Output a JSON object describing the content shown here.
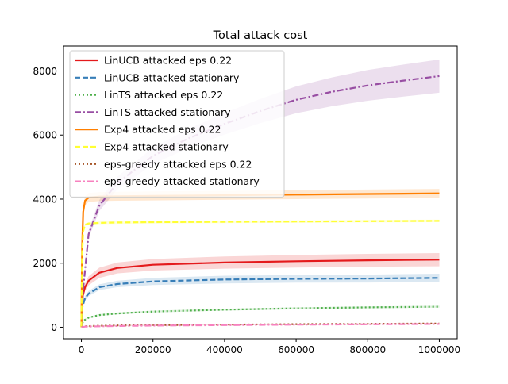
{
  "chart_data": {
    "type": "line",
    "title": "Total attack cost",
    "xlabel": "",
    "ylabel": "",
    "xlim": [
      -50000,
      1050000
    ],
    "ylim": [
      -360,
      8780
    ],
    "xticks": [
      0,
      200000,
      400000,
      600000,
      800000,
      1000000
    ],
    "xtick_labels": [
      "0",
      "200000",
      "400000",
      "600000",
      "800000",
      "1000000"
    ],
    "yticks": [
      0,
      2000,
      4000,
      6000,
      8000
    ],
    "ytick_labels": [
      "0",
      "2000",
      "4000",
      "6000",
      "8000"
    ],
    "grid": false,
    "legend_position": "upper-left",
    "series": [
      {
        "name": "LinUCB attacked eps 0.22",
        "color": "#e41a1c",
        "style": "solid",
        "x": [
          0,
          2000,
          10000,
          20000,
          50000,
          100000,
          200000,
          400000,
          600000,
          800000,
          1000000
        ],
        "y": [
          0,
          900,
          1250,
          1450,
          1700,
          1850,
          1950,
          2020,
          2060,
          2090,
          2110
        ],
        "band": [
          0,
          80,
          120,
          140,
          160,
          170,
          180,
          190,
          195,
          200,
          205
        ]
      },
      {
        "name": "LinUCB attacked stationary",
        "color": "#377eb8",
        "style": "dashed",
        "x": [
          0,
          2000,
          10000,
          20000,
          50000,
          100000,
          200000,
          400000,
          600000,
          800000,
          1000000
        ],
        "y": [
          0,
          600,
          900,
          1050,
          1250,
          1350,
          1430,
          1490,
          1510,
          1520,
          1540
        ],
        "band": [
          0,
          50,
          70,
          80,
          90,
          100,
          110,
          120,
          120,
          125,
          130
        ]
      },
      {
        "name": "LinTS attacked eps 0.22",
        "color": "#4daf4a",
        "style": "dotted",
        "x": [
          0,
          5000,
          20000,
          50000,
          100000,
          200000,
          400000,
          600000,
          800000,
          1000000
        ],
        "y": [
          0,
          200,
          300,
          380,
          430,
          490,
          550,
          590,
          620,
          640
        ],
        "band": [
          0,
          20,
          25,
          30,
          30,
          30,
          30,
          30,
          30,
          30
        ]
      },
      {
        "name": "LinTS attacked stationary",
        "color": "#984ea3",
        "style": "dashdot",
        "x": [
          0,
          5000,
          20000,
          50000,
          100000,
          200000,
          300000,
          400000,
          500000,
          600000,
          700000,
          800000,
          900000,
          1000000
        ],
        "y": [
          0,
          1200,
          2900,
          3800,
          4500,
          5350,
          5900,
          6350,
          6750,
          7100,
          7350,
          7550,
          7700,
          7840
        ],
        "band": [
          0,
          60,
          120,
          170,
          200,
          260,
          300,
          340,
          380,
          420,
          450,
          480,
          500,
          520
        ]
      },
      {
        "name": "Exp4 attacked eps 0.22",
        "color": "#ff7f00",
        "style": "solid",
        "x": [
          0,
          2000,
          5000,
          10000,
          20000,
          50000,
          100000,
          200000,
          400000,
          600000,
          800000,
          1000000
        ],
        "y": [
          0,
          2500,
          3600,
          3950,
          4050,
          4080,
          4090,
          4100,
          4120,
          4140,
          4160,
          4180
        ],
        "band": [
          0,
          100,
          130,
          140,
          140,
          140,
          140,
          140,
          140,
          140,
          140,
          140
        ]
      },
      {
        "name": "Exp4 attacked stationary",
        "color": "#ffff33",
        "style": "dashed",
        "x": [
          0,
          2000,
          5000,
          10000,
          20000,
          50000,
          100000,
          200000,
          400000,
          600000,
          800000,
          1000000
        ],
        "y": [
          0,
          2200,
          3000,
          3200,
          3240,
          3260,
          3270,
          3280,
          3290,
          3300,
          3310,
          3320
        ],
        "band": [
          0,
          40,
          40,
          40,
          40,
          40,
          40,
          40,
          40,
          40,
          40,
          40
        ]
      },
      {
        "name": "eps-greedy attacked eps 0.22",
        "color": "#a65628",
        "style": "dotted",
        "x": [
          0,
          10000,
          50000,
          100000,
          200000,
          400000,
          600000,
          800000,
          1000000
        ],
        "y": [
          0,
          30,
          45,
          55,
          65,
          80,
          95,
          105,
          115
        ],
        "band": [
          0,
          10,
          10,
          10,
          10,
          10,
          10,
          10,
          10
        ]
      },
      {
        "name": "eps-greedy attacked stationary",
        "color": "#f781bf",
        "style": "dashdot",
        "x": [
          0,
          10000,
          50000,
          100000,
          200000,
          400000,
          600000,
          800000,
          1000000
        ],
        "y": [
          0,
          20,
          30,
          40,
          50,
          65,
          80,
          90,
          100
        ],
        "band": [
          0,
          10,
          10,
          10,
          10,
          10,
          10,
          10,
          10
        ]
      }
    ]
  }
}
